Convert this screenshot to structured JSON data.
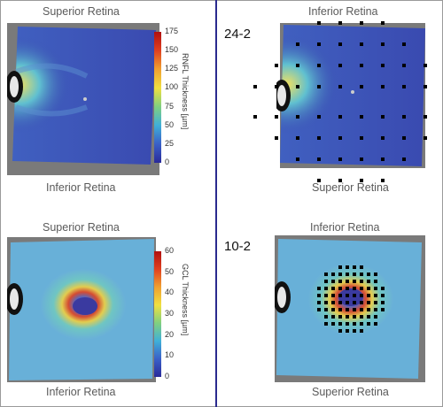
{
  "panels": {
    "top_left": {
      "top_label": "Superior Retina",
      "bottom_label": "Inferior Retina"
    },
    "top_right": {
      "top_label": "Inferior Retina",
      "bottom_label": "Superior Retina",
      "field": "24-2"
    },
    "bottom_left": {
      "top_label": "Superior Retina",
      "bottom_label": "Inferior Retina"
    },
    "bottom_right": {
      "top_label": "Inferior Retina",
      "bottom_label": "Superior Retina",
      "field": "10-2"
    }
  },
  "colorbars": {
    "rnfl": {
      "title": "RNFL Thickness [µm]",
      "ticks": [
        "175",
        "150",
        "125",
        "100",
        "75",
        "50",
        "25",
        "0"
      ],
      "max": 175
    },
    "gcl": {
      "title": "GCL Thickness [µm]",
      "ticks": [
        "60",
        "50",
        "40",
        "30",
        "20",
        "10",
        "0"
      ],
      "max": 60
    }
  },
  "colors": {
    "divider": "#2a2a8e",
    "map_blue": "#3a4fb0",
    "map_cyan": "#5ab0d8",
    "map_yellow": "#e8d040",
    "map_red": "#d03020",
    "stimulus_point": "#000000"
  }
}
